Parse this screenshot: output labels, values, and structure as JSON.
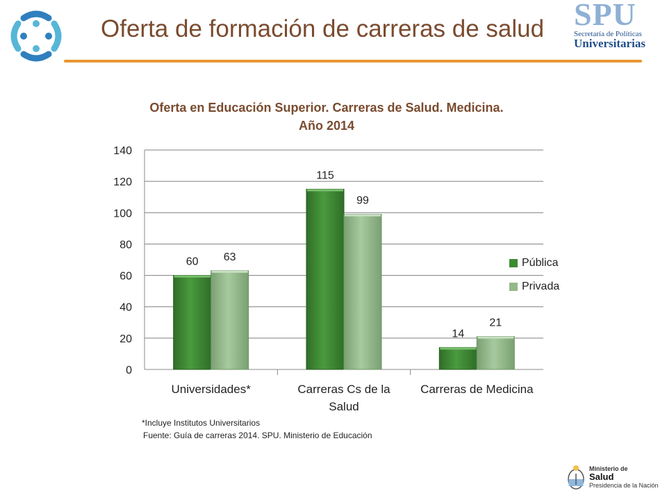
{
  "header": {
    "title": "Oferta de formación de carreras de salud",
    "logo_left_icon": "circular-people-logo-icon",
    "logo_right": {
      "mark": "SPU",
      "line1": "Secretaría de Políticas",
      "line2": "Universitarias"
    },
    "accent_color": "#e9962f"
  },
  "chart_data": {
    "type": "bar",
    "title": "Oferta en Educación Superior. Carreras de Salud. Medicina. Año 2014",
    "title_lines": [
      "Oferta en Educación Superior. Carreras de Salud. Medicina.",
      "Año 2014"
    ],
    "categories": [
      [
        "Universidades*"
      ],
      [
        "Carreras Cs de la",
        "Salud"
      ],
      [
        "Carreras de Medicina"
      ]
    ],
    "series": [
      {
        "name": "Pública",
        "values": [
          60,
          115,
          14
        ],
        "color": "#3d8a33"
      },
      {
        "name": "Privada",
        "values": [
          63,
          99,
          21
        ],
        "color": "#93b98a"
      }
    ],
    "ylim": [
      0,
      140
    ],
    "yticks": [
      "0",
      "20",
      "40",
      "60",
      "80",
      "100",
      "120",
      "140"
    ],
    "grid": true,
    "legend_position": "right"
  },
  "footnotes": {
    "line1": "*Incluye Institutos Universitarios",
    "line2": "Fuente: Guía de carreras 2014.  SPU. Ministerio de Educación"
  },
  "footer_logo": {
    "line1": "Ministerio de",
    "line2": "Salud",
    "line3": "Presidencia de la Nación",
    "icon": "argentina-seal-icon"
  }
}
